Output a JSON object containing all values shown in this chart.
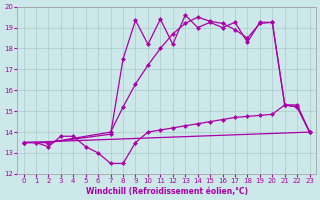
{
  "background_color": "#cde8e8",
  "grid_color": "#aacccc",
  "line_color": "#aa00aa",
  "xlabel": "Windchill (Refroidissement éolien,°C)",
  "xlim": [
    -0.5,
    23.5
  ],
  "ylim": [
    12,
    20
  ],
  "yticks": [
    12,
    13,
    14,
    15,
    16,
    17,
    18,
    19,
    20
  ],
  "xticks": [
    0,
    1,
    2,
    3,
    4,
    5,
    6,
    7,
    8,
    9,
    10,
    11,
    12,
    13,
    14,
    15,
    16,
    17,
    18,
    19,
    20,
    21,
    22,
    23
  ],
  "curve1": {
    "x": [
      0,
      23
    ],
    "y": [
      13.5,
      14.0
    ]
  },
  "curve2": {
    "x": [
      0,
      1,
      2,
      3,
      4,
      5,
      6,
      7,
      8,
      9,
      10,
      11,
      12,
      13,
      14,
      15,
      16,
      17,
      18,
      19,
      20,
      21,
      22,
      23
    ],
    "y": [
      13.5,
      13.5,
      13.3,
      13.8,
      13.8,
      13.3,
      13.0,
      12.5,
      12.5,
      13.5,
      14.0,
      14.1,
      14.2,
      14.3,
      14.4,
      14.5,
      14.6,
      14.7,
      14.75,
      14.8,
      14.85,
      15.3,
      15.3,
      14.0
    ]
  },
  "curve3": {
    "x": [
      0,
      2,
      7,
      8,
      9,
      10,
      11,
      12,
      13,
      14,
      15,
      16,
      17,
      18,
      19,
      20,
      21,
      22,
      23
    ],
    "y": [
      13.5,
      13.5,
      13.9,
      17.5,
      19.35,
      18.2,
      19.4,
      18.2,
      19.6,
      19.0,
      19.25,
      19.0,
      19.25,
      18.3,
      19.25,
      19.25,
      15.3,
      15.2,
      14.0
    ]
  },
  "curve4": {
    "x": [
      0,
      2,
      7,
      8,
      9,
      10,
      11,
      12,
      13,
      14,
      15,
      16,
      17,
      18,
      19,
      20,
      21,
      22,
      23
    ],
    "y": [
      13.5,
      13.5,
      14.0,
      15.2,
      16.3,
      17.2,
      18.0,
      18.7,
      19.2,
      19.5,
      19.3,
      19.2,
      18.9,
      18.5,
      19.2,
      19.25,
      15.3,
      15.2,
      14.0
    ]
  }
}
